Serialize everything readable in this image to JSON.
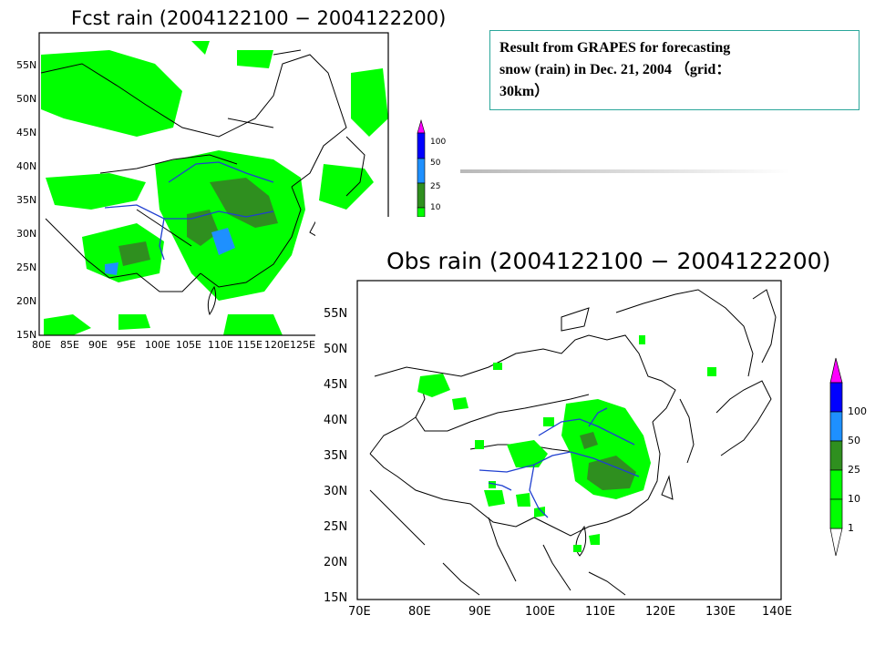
{
  "caption": {
    "line1": "Result from GRAPES for forecasting",
    "line2": "snow (rain) in Dec. 21, 2004 （grid：",
    "line3": "30km）"
  },
  "fcst_map": {
    "title": "Fcst rain (2004122100 − 2004122200)",
    "lat_ticks": [
      "55N",
      "50N",
      "45N",
      "40N",
      "35N",
      "30N",
      "25N",
      "20N",
      "15N"
    ],
    "lon_ticks": [
      "80E",
      "85E",
      "90E",
      "95E",
      "100E",
      "105E",
      "110E",
      "115E",
      "120E",
      "125E"
    ]
  },
  "obs_map": {
    "title": "Obs rain (2004122100 − 2004122200)",
    "lat_ticks": [
      "55N",
      "50N",
      "45N",
      "40N",
      "35N",
      "30N",
      "25N",
      "20N",
      "15N"
    ],
    "lon_ticks": [
      "70E",
      "80E",
      "90E",
      "100E",
      "110E",
      "120E",
      "130E",
      "140E"
    ]
  },
  "legend": {
    "levels": [
      "100",
      "50",
      "25",
      "10",
      "1"
    ],
    "colors": [
      "#ff00ff",
      "#0000ff",
      "#1e90ff",
      "#2f8f1f",
      "#00ff00"
    ]
  },
  "icons": {
    "legend_top": "magenta-triangle",
    "legend_bottom": "white-triangle"
  }
}
